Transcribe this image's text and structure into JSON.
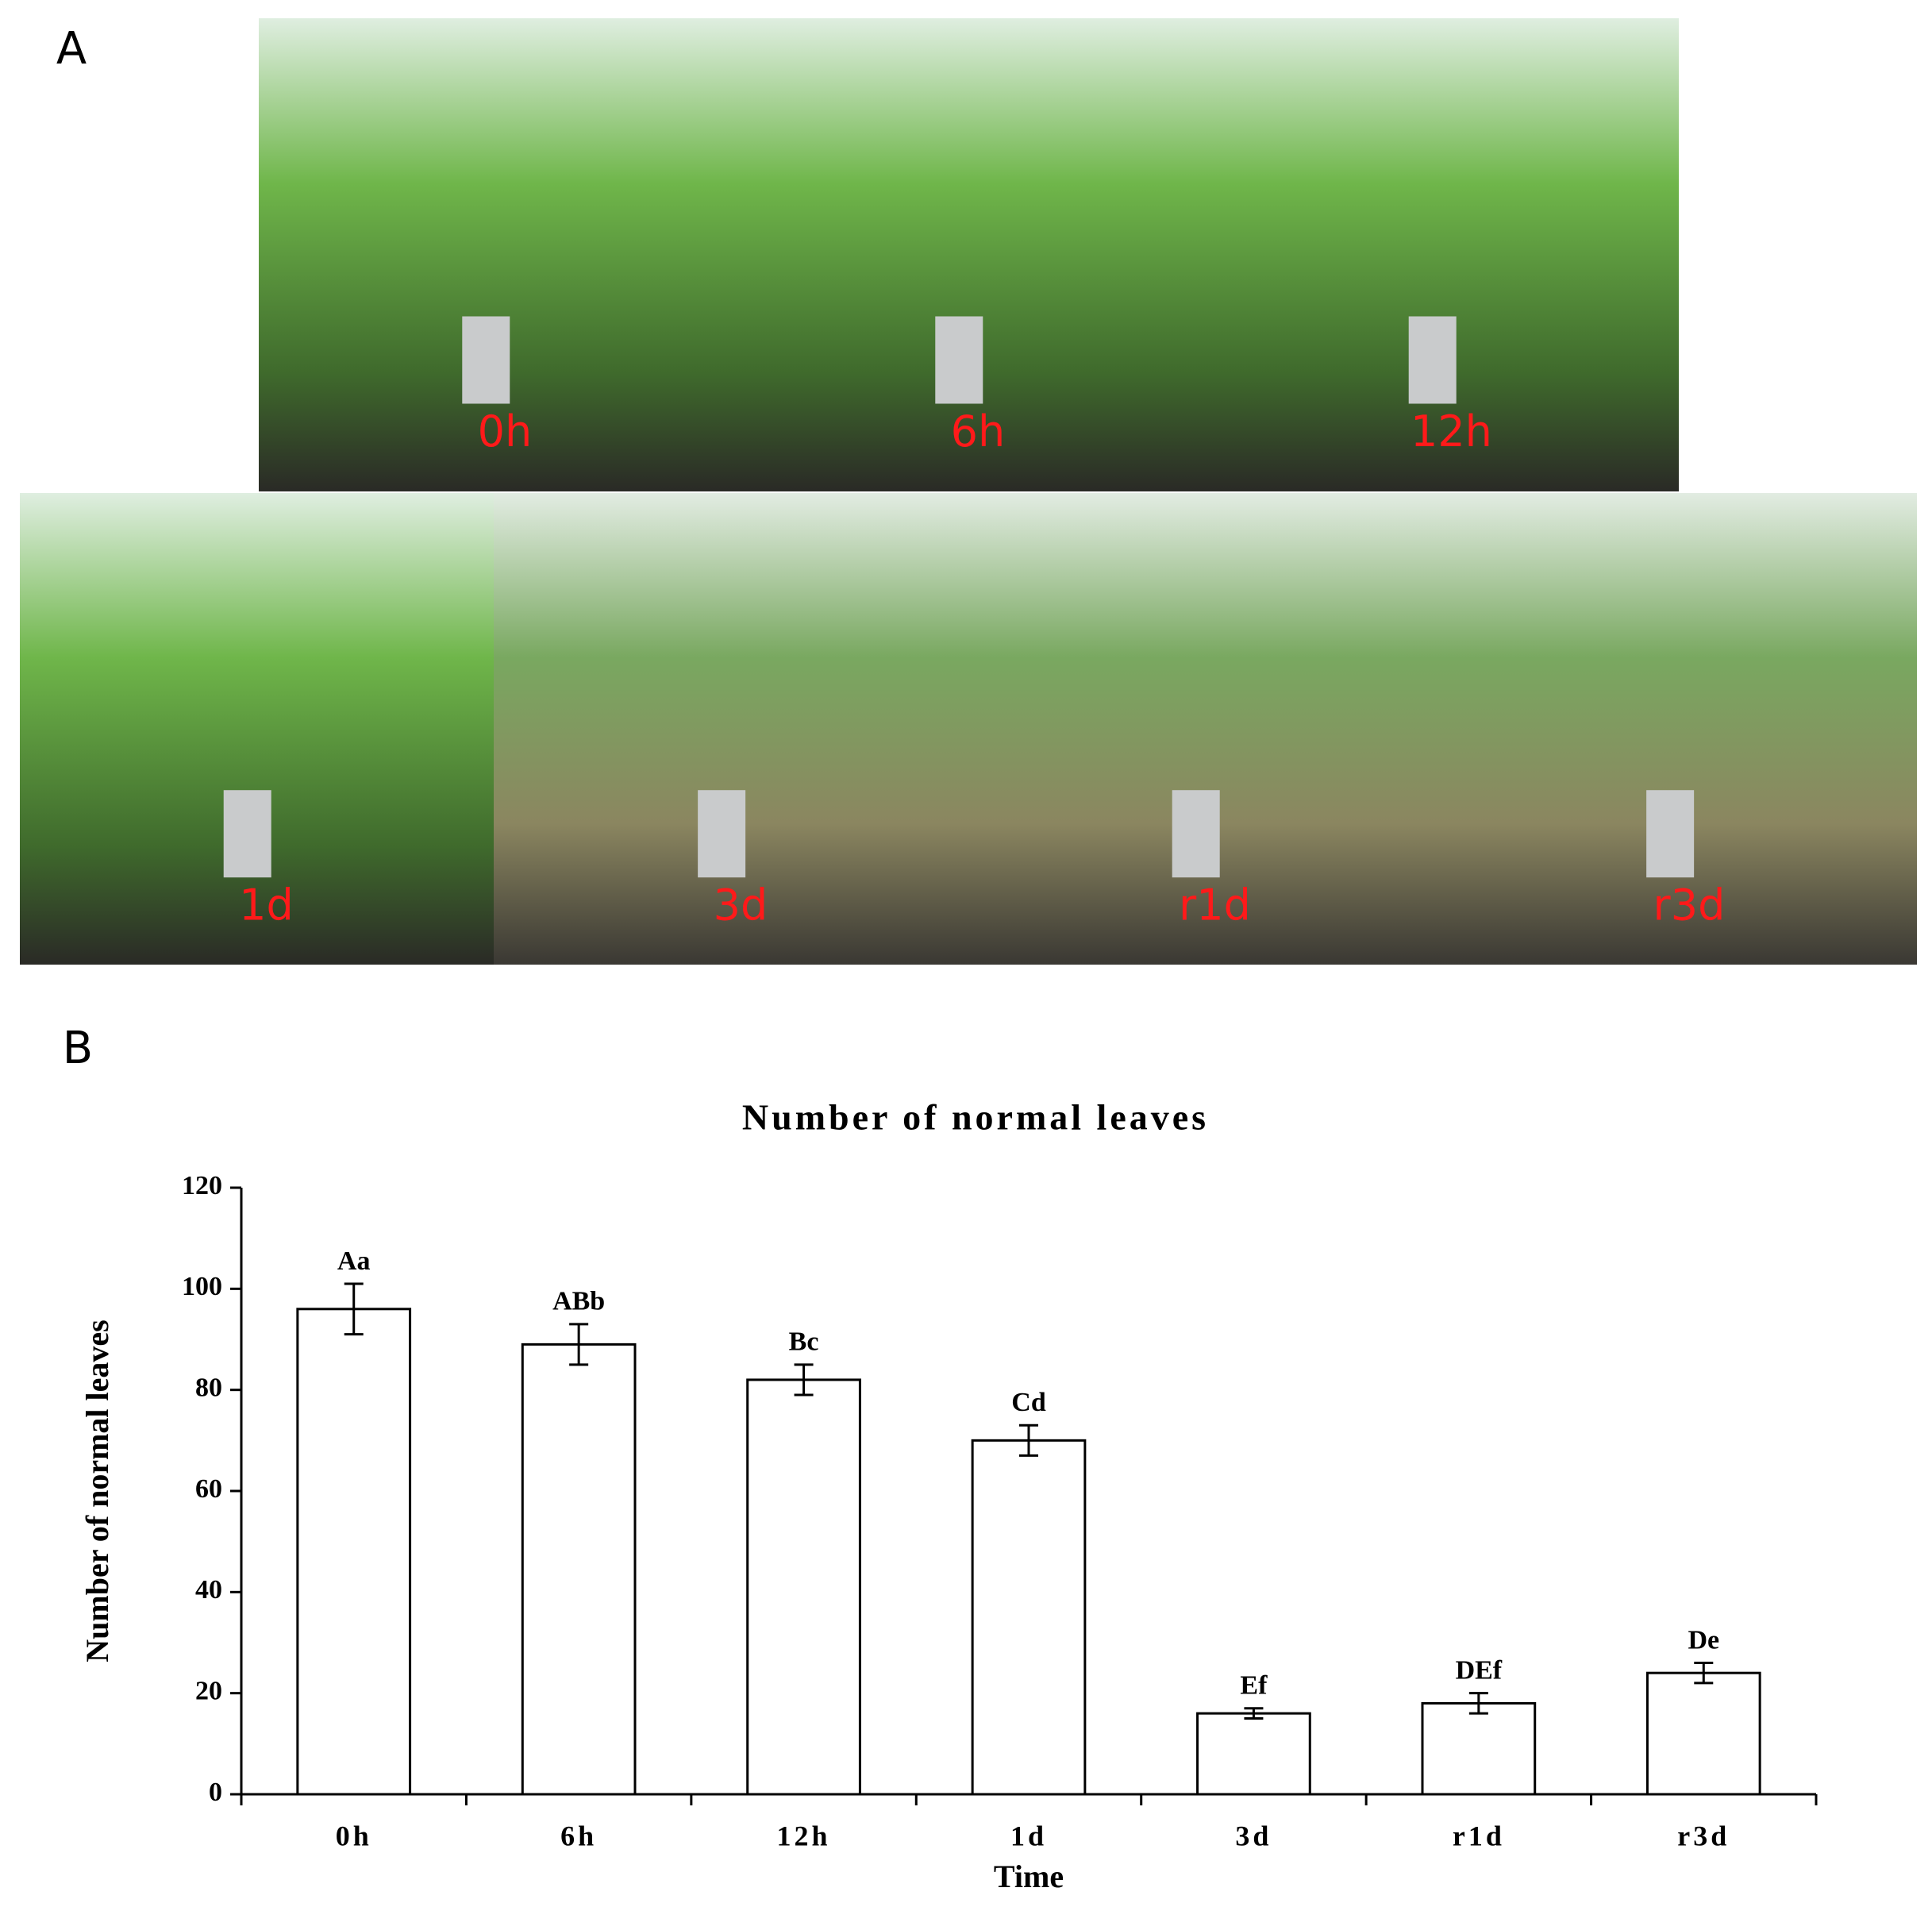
{
  "panels": {
    "a": "A",
    "b": "B"
  },
  "photos": [
    {
      "label": "0h"
    },
    {
      "label": "6h"
    },
    {
      "label": "12h"
    },
    {
      "label": "1d"
    },
    {
      "label": "3d"
    },
    {
      "label": "r1d"
    },
    {
      "label": "r3d"
    }
  ],
  "chart_data": {
    "type": "bar",
    "title": "Number of normal leaves",
    "x_label": "Time",
    "y_label": "Number of normal leaves",
    "categories": [
      "0h",
      "6h",
      "12h",
      "1d",
      "3d",
      "r1d",
      "r3d"
    ],
    "values": [
      96,
      89,
      82,
      70,
      16,
      18,
      24
    ],
    "errors": [
      5,
      4,
      3,
      3,
      1,
      2,
      2
    ],
    "value_labels": [
      "Aa",
      "ABb",
      "Bc",
      "Cd",
      "Ef",
      "DEf",
      "De"
    ],
    "color": "#ffffff",
    "ylim": [
      0,
      120
    ],
    "yticks": [
      0,
      20,
      40,
      60,
      80,
      100,
      120
    ],
    "grid": false
  }
}
